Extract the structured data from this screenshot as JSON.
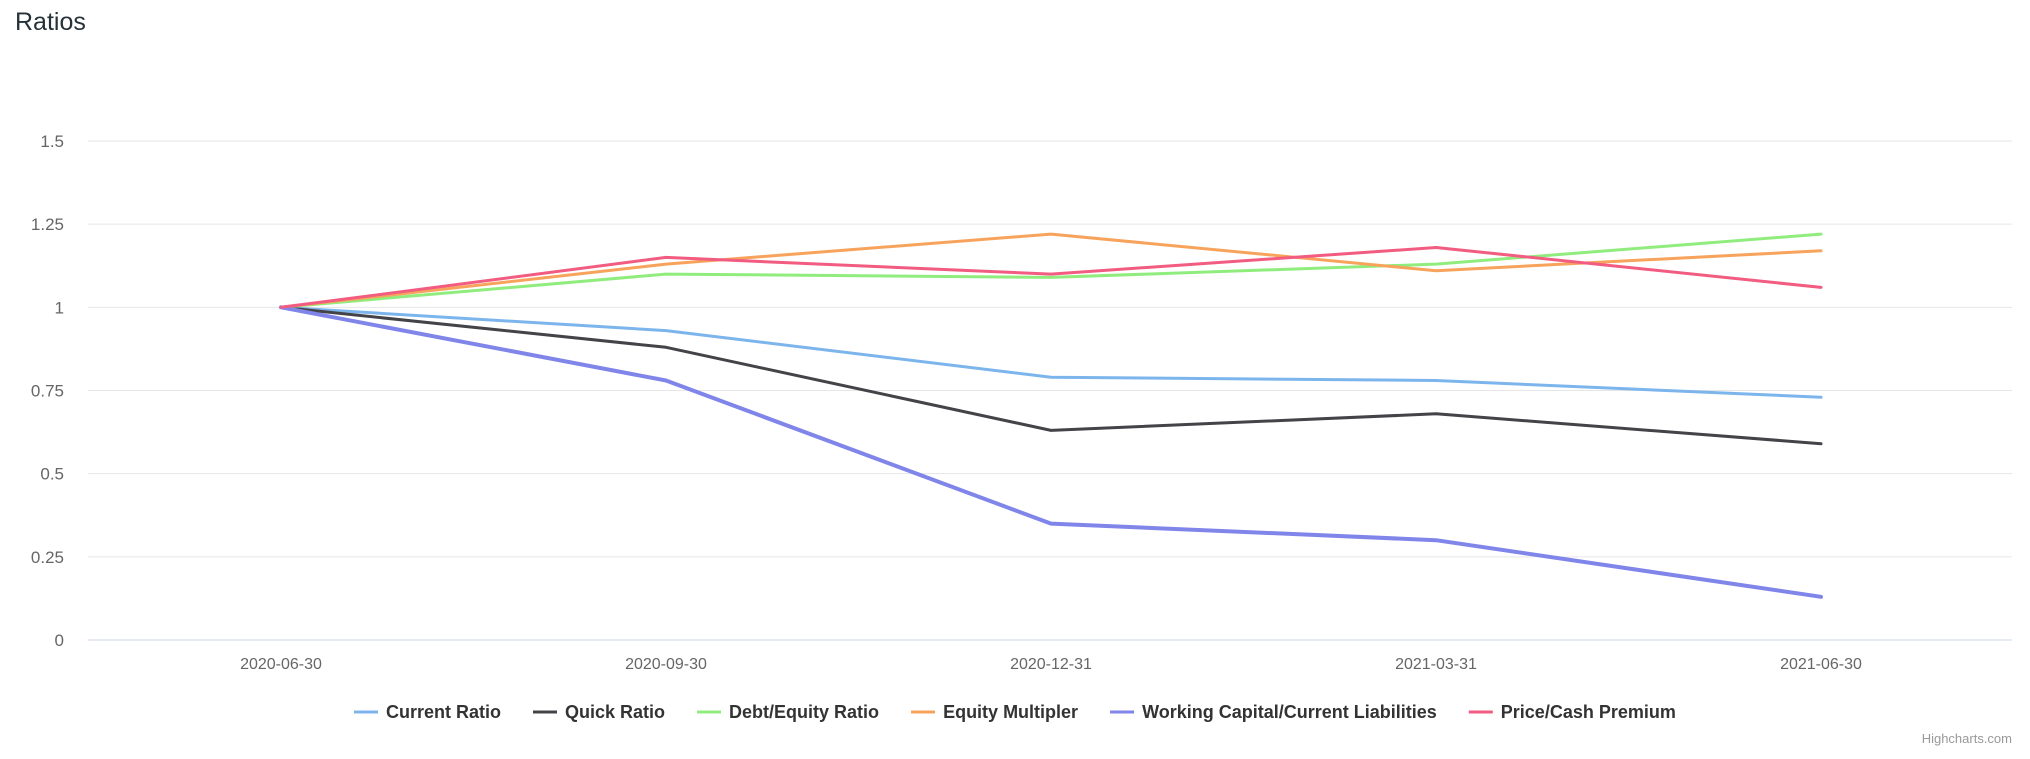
{
  "title": "Ratios",
  "credits": "Highcharts.com",
  "chart_data": {
    "type": "line",
    "title": "Ratios",
    "categories": [
      "2020-06-30",
      "2020-09-30",
      "2020-12-31",
      "2021-03-31",
      "2021-06-30"
    ],
    "yticks": [
      "0",
      "0.25",
      "0.5",
      "0.75",
      "1",
      "1.25",
      "1.5"
    ],
    "ylim": [
      0,
      1.5
    ],
    "grid": true,
    "legend_position": "bottom",
    "series": [
      {
        "name": "Current Ratio",
        "color": "#7cb5ec",
        "values": [
          1.0,
          0.93,
          0.79,
          0.78,
          0.73
        ]
      },
      {
        "name": "Quick Ratio",
        "color": "#434348",
        "values": [
          1.0,
          0.88,
          0.63,
          0.68,
          0.59
        ]
      },
      {
        "name": "Debt/Equity Ratio",
        "color": "#90ed7d",
        "values": [
          1.0,
          1.1,
          1.09,
          1.13,
          1.22
        ]
      },
      {
        "name": "Equity Multipler",
        "color": "#f7a35c",
        "values": [
          1.0,
          1.13,
          1.22,
          1.11,
          1.17
        ]
      },
      {
        "name": "Working Capital/Current Liabilities",
        "color": "#8085e9",
        "values": [
          1.0,
          0.78,
          0.35,
          0.3,
          0.13
        ]
      },
      {
        "name": "Price/Cash Premium",
        "color": "#f15c80",
        "values": [
          1.0,
          1.15,
          1.1,
          1.18,
          1.06
        ]
      }
    ]
  }
}
